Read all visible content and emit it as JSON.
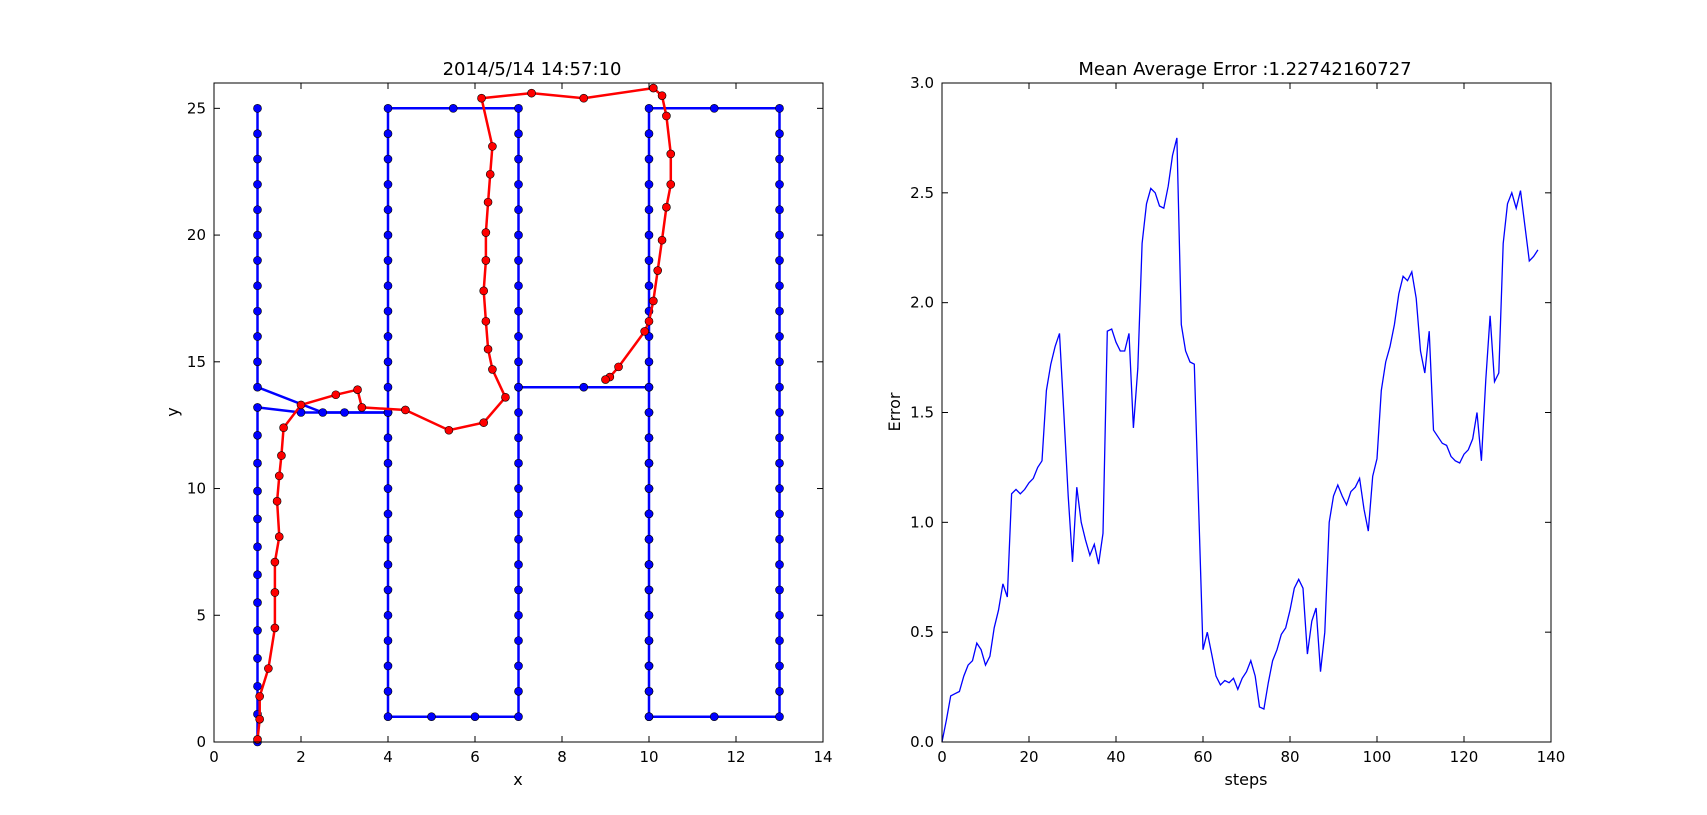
{
  "chart_data": [
    {
      "type": "line",
      "title": "2014/5/14  14:57:10",
      "xlabel": "x",
      "ylabel": "y",
      "xlim": [
        0,
        14
      ],
      "ylim": [
        0,
        26
      ],
      "xticks": [
        0,
        2,
        4,
        6,
        8,
        10,
        12,
        14
      ],
      "yticks": [
        0,
        5,
        10,
        15,
        20,
        25
      ],
      "grid": false,
      "series": [
        {
          "color": "#0000ff",
          "marker": "circle",
          "points": [
            [
              1,
              0
            ],
            [
              1,
              1.1
            ],
            [
              1,
              2.2
            ],
            [
              1,
              3.3
            ],
            [
              1,
              4.4
            ],
            [
              1,
              5.5
            ],
            [
              1,
              6.6
            ],
            [
              1,
              7.7
            ],
            [
              1,
              8.8
            ],
            [
              1,
              9.9
            ],
            [
              1,
              11.0
            ],
            [
              1,
              12.1
            ],
            [
              1,
              13.2
            ],
            [
              2,
              13.0
            ],
            [
              3,
              13.0
            ],
            [
              4,
              13.0
            ],
            [
              4,
              12.0
            ],
            [
              4,
              11.0
            ],
            [
              4,
              10.0
            ],
            [
              4,
              9.0
            ],
            [
              4,
              8.0
            ],
            [
              4,
              7.0
            ],
            [
              4,
              6.0
            ],
            [
              4,
              5.0
            ],
            [
              4,
              4.0
            ],
            [
              4,
              3.0
            ],
            [
              4,
              2.0
            ],
            [
              4,
              1.0
            ],
            [
              5,
              1.0
            ],
            [
              6,
              1.0
            ],
            [
              7,
              1.0
            ],
            [
              7,
              2.0
            ],
            [
              7,
              3.0
            ],
            [
              7,
              4.0
            ],
            [
              7,
              5.0
            ],
            [
              7,
              6.0
            ],
            [
              7,
              7.0
            ],
            [
              7,
              8.0
            ],
            [
              7,
              9.0
            ],
            [
              7,
              10.0
            ],
            [
              7,
              11.0
            ],
            [
              7,
              12.0
            ],
            [
              7,
              13.0
            ],
            [
              7,
              14.0
            ],
            [
              8.5,
              14.0
            ],
            [
              10,
              14.0
            ],
            [
              10,
              13.0
            ],
            [
              10,
              12.0
            ],
            [
              10,
              11.0
            ],
            [
              10,
              10.0
            ],
            [
              10,
              9.0
            ],
            [
              10,
              8.0
            ],
            [
              10,
              7.0
            ],
            [
              10,
              6.0
            ],
            [
              10,
              5.0
            ],
            [
              10,
              4.0
            ],
            [
              10,
              3.0
            ],
            [
              10,
              2.0
            ],
            [
              10,
              1.0
            ],
            [
              11.5,
              1.0
            ],
            [
              13,
              1.0
            ],
            [
              13,
              2.0
            ],
            [
              13,
              3.0
            ],
            [
              13,
              4.0
            ],
            [
              13,
              5.0
            ],
            [
              13,
              6.0
            ],
            [
              13,
              7.0
            ],
            [
              13,
              8.0
            ],
            [
              13,
              9.0
            ],
            [
              13,
              10.0
            ],
            [
              13,
              11.0
            ],
            [
              13,
              12.0
            ],
            [
              13,
              13.0
            ],
            [
              13,
              14.0
            ],
            [
              13,
              15.0
            ],
            [
              13,
              16.0
            ],
            [
              13,
              17.0
            ],
            [
              13,
              18.0
            ],
            [
              13,
              19.0
            ],
            [
              13,
              20.0
            ],
            [
              13,
              21.0
            ],
            [
              13,
              22.0
            ],
            [
              13,
              23.0
            ],
            [
              13,
              24.0
            ],
            [
              13,
              25.0
            ],
            [
              11.5,
              25.0
            ],
            [
              10,
              25.0
            ],
            [
              10,
              24.0
            ],
            [
              10,
              23.0
            ],
            [
              10,
              22.0
            ],
            [
              10,
              21.0
            ],
            [
              10,
              20.0
            ],
            [
              10,
              19.0
            ],
            [
              10,
              18.0
            ],
            [
              10,
              17.0
            ],
            [
              10,
              16.0
            ],
            [
              10,
              15.0
            ],
            [
              10,
              14.0
            ],
            [
              10,
              13.0
            ],
            [
              10,
              12.0
            ],
            [
              10,
              11.0
            ],
            [
              10,
              10.0
            ],
            [
              10,
              9.0
            ],
            [
              10,
              8.0
            ],
            [
              10,
              7.0
            ],
            [
              10,
              6.0
            ],
            [
              10,
              5.0
            ],
            [
              10,
              4.0
            ],
            [
              10,
              3.0
            ],
            [
              10,
              2.0
            ],
            [
              10,
              1.0
            ]
          ],
          "extra_paths": [
            [
              [
                1,
                25
              ],
              [
                1,
                24
              ],
              [
                1,
                23
              ],
              [
                1,
                22
              ],
              [
                1,
                21
              ],
              [
                1,
                20
              ],
              [
                1,
                19
              ],
              [
                1,
                18
              ],
              [
                1,
                17
              ],
              [
                1,
                16
              ],
              [
                1,
                15
              ],
              [
                1,
                14
              ],
              [
                2.5,
                13.0
              ],
              [
                4,
                13.0
              ]
            ],
            [
              [
                4,
                13.0
              ],
              [
                4,
                14.0
              ],
              [
                4,
                15.0
              ],
              [
                4,
                16.0
              ],
              [
                4,
                17.0
              ],
              [
                4,
                18.0
              ],
              [
                4,
                19.0
              ],
              [
                4,
                20.0
              ],
              [
                4,
                21.0
              ],
              [
                4,
                22.0
              ],
              [
                4,
                23.0
              ],
              [
                4,
                24.0
              ],
              [
                4,
                25.0
              ],
              [
                5.5,
                25.0
              ],
              [
                7,
                25.0
              ],
              [
                7,
                24.0
              ],
              [
                7,
                23.0
              ],
              [
                7,
                22.0
              ],
              [
                7,
                21.0
              ],
              [
                7,
                20.0
              ],
              [
                7,
                19.0
              ],
              [
                7,
                18.0
              ],
              [
                7,
                17.0
              ],
              [
                7,
                16.0
              ],
              [
                7,
                15.0
              ],
              [
                7,
                14.0
              ]
            ]
          ]
        },
        {
          "color": "#ff0000",
          "marker": "circle",
          "points": [
            [
              1.0,
              0.1
            ],
            [
              1.05,
              0.9
            ],
            [
              1.05,
              1.8
            ],
            [
              1.25,
              2.9
            ],
            [
              1.4,
              4.5
            ],
            [
              1.4,
              5.9
            ],
            [
              1.4,
              7.1
            ],
            [
              1.5,
              8.1
            ],
            [
              1.45,
              9.5
            ],
            [
              1.5,
              10.5
            ],
            [
              1.55,
              11.3
            ],
            [
              1.6,
              12.4
            ],
            [
              2.0,
              13.3
            ],
            [
              2.8,
              13.7
            ],
            [
              3.3,
              13.9
            ],
            [
              3.4,
              13.2
            ],
            [
              4.4,
              13.1
            ],
            [
              5.4,
              12.3
            ],
            [
              6.2,
              12.6
            ],
            [
              6.7,
              13.6
            ],
            [
              6.4,
              14.7
            ],
            [
              6.3,
              15.5
            ],
            [
              6.25,
              16.6
            ],
            [
              6.2,
              17.8
            ],
            [
              6.25,
              19.0
            ],
            [
              6.25,
              20.1
            ],
            [
              6.3,
              21.3
            ],
            [
              6.35,
              22.4
            ],
            [
              6.4,
              23.5
            ],
            [
              6.15,
              25.4
            ],
            [
              7.3,
              25.6
            ],
            [
              8.5,
              25.4
            ],
            [
              10.1,
              25.8
            ],
            [
              10.3,
              25.5
            ],
            [
              10.4,
              24.7
            ],
            [
              10.5,
              23.2
            ],
            [
              10.5,
              22.0
            ],
            [
              10.4,
              21.1
            ],
            [
              10.3,
              19.8
            ],
            [
              10.2,
              18.6
            ],
            [
              10.1,
              17.4
            ],
            [
              10.0,
              16.6
            ],
            [
              9.9,
              16.2
            ],
            [
              9.3,
              14.8
            ],
            [
              9.1,
              14.4
            ],
            [
              9.0,
              14.3
            ]
          ]
        }
      ]
    },
    {
      "type": "line",
      "title": "Mean Average Error :1.22742160727",
      "xlabel": "steps",
      "ylabel": "Error",
      "xlim": [
        0,
        140
      ],
      "ylim": [
        0.0,
        3.0
      ],
      "xticks": [
        0,
        20,
        40,
        60,
        80,
        100,
        120,
        140
      ],
      "yticks": [
        0.0,
        0.5,
        1.0,
        1.5,
        2.0,
        2.5,
        3.0
      ],
      "grid": false,
      "series": [
        {
          "color": "#0000ff",
          "x": [
            0,
            1,
            2,
            3,
            4,
            5,
            6,
            7,
            8,
            9,
            10,
            11,
            12,
            13,
            14,
            15,
            16,
            17,
            18,
            19,
            20,
            21,
            22,
            23,
            24,
            25,
            26,
            27,
            28,
            29,
            30,
            31,
            32,
            33,
            34,
            35,
            36,
            37,
            38,
            39,
            40,
            41,
            42,
            43,
            44,
            45,
            46,
            47,
            48,
            49,
            50,
            51,
            52,
            53,
            54,
            55,
            56,
            57,
            58,
            59,
            60,
            61,
            62,
            63,
            64,
            65,
            66,
            67,
            68,
            69,
            70,
            71,
            72,
            73,
            74,
            75,
            76,
            77,
            78,
            79,
            80,
            81,
            82,
            83,
            84,
            85,
            86,
            87,
            88,
            89,
            90,
            91,
            92,
            93,
            94,
            95,
            96,
            97,
            98,
            99,
            100,
            101,
            102,
            103,
            104,
            105,
            106,
            107,
            108,
            109,
            110,
            111,
            112,
            113,
            114,
            115,
            116,
            117,
            118,
            119,
            120,
            121,
            122,
            123,
            124,
            125,
            126,
            127,
            128,
            129,
            130,
            131,
            132,
            133,
            134,
            135,
            136,
            137
          ],
          "values": [
            0.0,
            0.1,
            0.21,
            0.22,
            0.23,
            0.3,
            0.35,
            0.37,
            0.45,
            0.42,
            0.35,
            0.39,
            0.52,
            0.6,
            0.72,
            0.66,
            1.13,
            1.15,
            1.13,
            1.15,
            1.18,
            1.2,
            1.25,
            1.28,
            1.6,
            1.72,
            1.8,
            1.86,
            1.5,
            1.12,
            0.82,
            1.16,
            1.0,
            0.92,
            0.85,
            0.9,
            0.81,
            0.95,
            1.87,
            1.88,
            1.82,
            1.78,
            1.78,
            1.86,
            1.43,
            1.7,
            2.27,
            2.45,
            2.52,
            2.5,
            2.44,
            2.43,
            2.53,
            2.67,
            2.75,
            1.9,
            1.78,
            1.73,
            1.72,
            1.06,
            0.42,
            0.5,
            0.4,
            0.3,
            0.26,
            0.28,
            0.27,
            0.29,
            0.24,
            0.29,
            0.32,
            0.37,
            0.3,
            0.16,
            0.15,
            0.27,
            0.37,
            0.42,
            0.49,
            0.52,
            0.6,
            0.7,
            0.74,
            0.7,
            0.4,
            0.55,
            0.61,
            0.32,
            0.5,
            1.0,
            1.12,
            1.17,
            1.12,
            1.08,
            1.14,
            1.16,
            1.2,
            1.06,
            0.96,
            1.21,
            1.29,
            1.6,
            1.73,
            1.8,
            1.9,
            2.04,
            2.12,
            2.1,
            2.14,
            2.02,
            1.78,
            1.68,
            1.87,
            1.42,
            1.39,
            1.36,
            1.35,
            1.3,
            1.28,
            1.27,
            1.31,
            1.33,
            1.38,
            1.5,
            1.28,
            1.65,
            1.94,
            1.64,
            1.68,
            2.27,
            2.45,
            2.5,
            2.43,
            2.51,
            2.35,
            2.19,
            2.21,
            2.24
          ]
        }
      ]
    }
  ]
}
